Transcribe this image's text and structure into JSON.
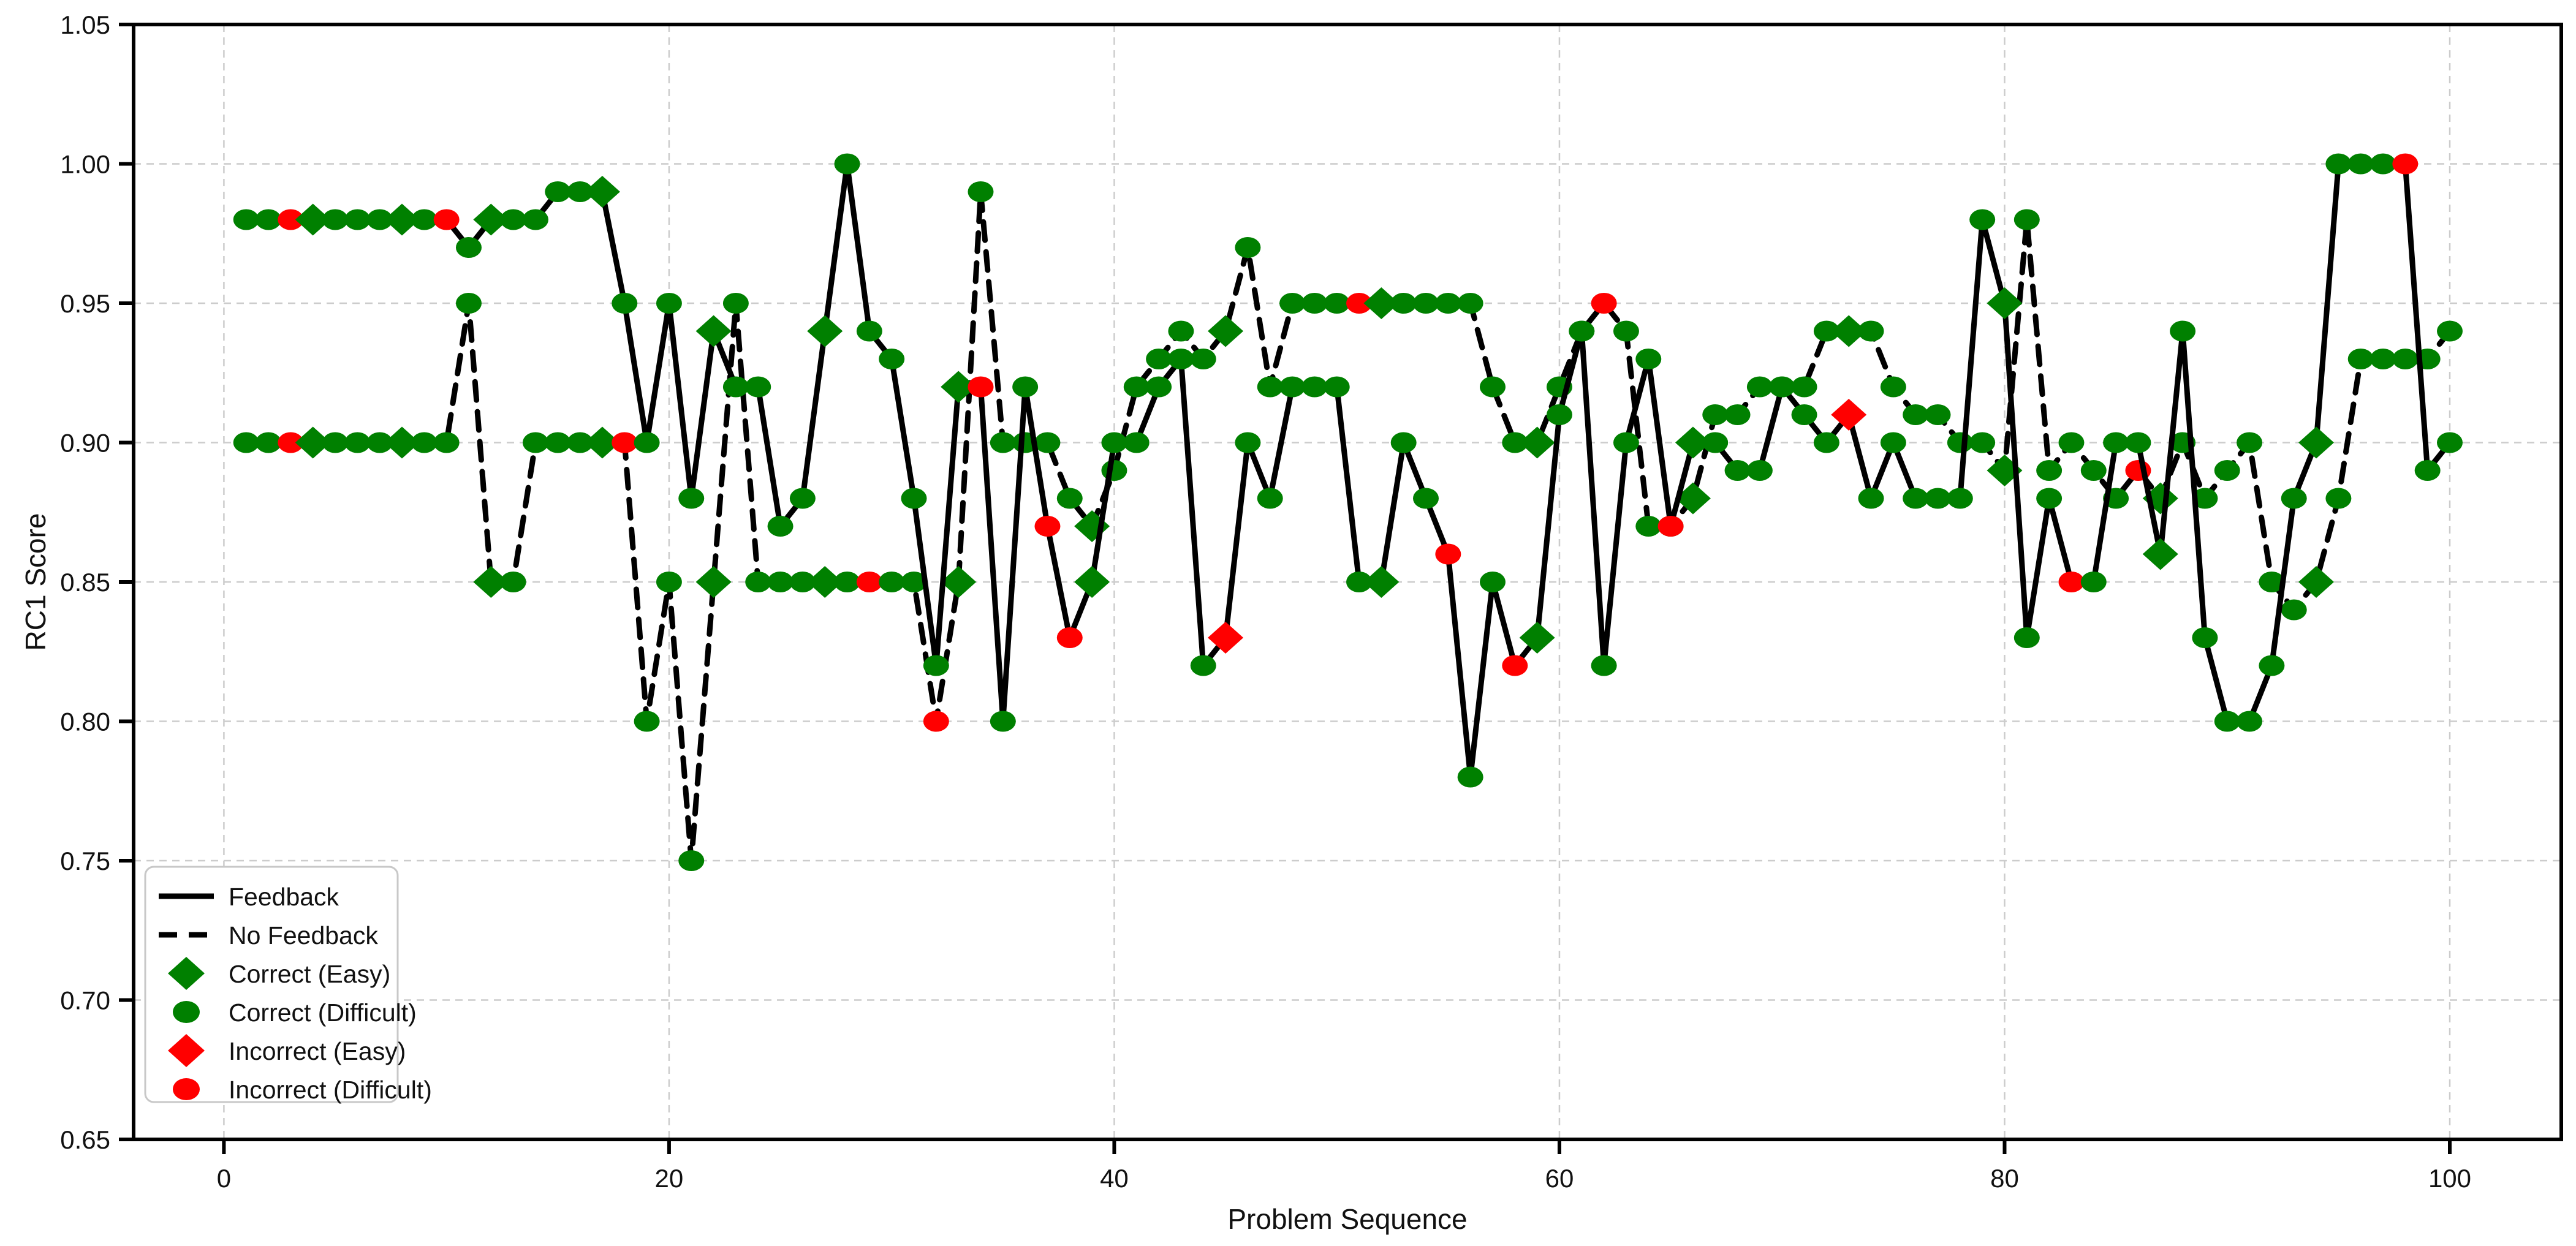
{
  "chart_data": {
    "type": "line",
    "title": "",
    "xlabel": "Problem Sequence",
    "ylabel": "RC1 Score",
    "xticks": [
      0,
      20,
      40,
      60,
      80,
      100
    ],
    "yticks": [
      0.65,
      0.7,
      0.75,
      0.8,
      0.85,
      0.9,
      0.95,
      1.0,
      1.05
    ],
    "ytick_labels": [
      "0.65",
      "0.70",
      "0.75",
      "0.80",
      "0.85",
      "0.90",
      "0.95",
      "1.00",
      "1.05"
    ],
    "xlim": [
      -4,
      105
    ],
    "ylim": [
      0.65,
      1.05
    ],
    "grid": true,
    "legend_position": "lower-left",
    "colors": {
      "correct": "#008000",
      "incorrect": "#ff0000",
      "line": "#000000",
      "grid": "#cccccc",
      "legend_border": "#c8c8c8",
      "text": "#111111"
    },
    "x": [
      1,
      2,
      3,
      4,
      5,
      6,
      7,
      8,
      9,
      10,
      11,
      12,
      13,
      14,
      15,
      16,
      17,
      18,
      19,
      20,
      21,
      22,
      23,
      24,
      25,
      26,
      27,
      28,
      29,
      30,
      31,
      32,
      33,
      34,
      35,
      36,
      37,
      38,
      39,
      40,
      41,
      42,
      43,
      44,
      45,
      46,
      47,
      48,
      49,
      50,
      51,
      52,
      53,
      54,
      55,
      56,
      57,
      58,
      59,
      60,
      61,
      62,
      63,
      64,
      65,
      66,
      67,
      68,
      69,
      70,
      71,
      72,
      73,
      74,
      75,
      76,
      77,
      78,
      79,
      80,
      81,
      82,
      83,
      84,
      85,
      86,
      87,
      88,
      89,
      90,
      91,
      92,
      93,
      94,
      95,
      96,
      97,
      98,
      99,
      100
    ],
    "easy_problem_indices": [
      4,
      8,
      12,
      17,
      22,
      27,
      33,
      39,
      45,
      52,
      59,
      66,
      73,
      80,
      87,
      94
    ],
    "series": [
      {
        "name": "No Feedback",
        "line_style": "dashed",
        "values": [
          0.9,
          0.9,
          0.9,
          0.9,
          0.9,
          0.9,
          0.9,
          0.9,
          0.9,
          0.9,
          0.95,
          0.85,
          0.85,
          0.9,
          0.9,
          0.9,
          0.9,
          0.9,
          0.8,
          0.85,
          0.75,
          0.85,
          0.95,
          0.85,
          0.85,
          0.85,
          0.85,
          0.85,
          0.85,
          0.85,
          0.85,
          0.8,
          0.85,
          0.99,
          0.9,
          0.9,
          0.9,
          0.88,
          0.87,
          0.89,
          0.92,
          0.93,
          0.94,
          0.93,
          0.94,
          0.97,
          0.92,
          0.95,
          0.95,
          0.95,
          0.95,
          0.95,
          0.95,
          0.95,
          0.95,
          0.95,
          0.92,
          0.9,
          0.9,
          0.92,
          0.94,
          0.95,
          0.94,
          0.87,
          0.87,
          0.88,
          0.91,
          0.91,
          0.92,
          0.92,
          0.92,
          0.94,
          0.94,
          0.94,
          0.92,
          0.91,
          0.91,
          0.9,
          0.9,
          0.89,
          0.98,
          0.89,
          0.9,
          0.89,
          0.88,
          0.89,
          0.88,
          0.9,
          0.88,
          0.89,
          0.9,
          0.85,
          0.84,
          0.85,
          0.88,
          0.93,
          0.93,
          0.93,
          0.93,
          0.94
        ],
        "incorrect_indices": [
          3,
          18,
          29,
          32,
          51,
          62,
          86
        ]
      },
      {
        "name": "Feedback",
        "line_style": "solid",
        "values": [
          0.98,
          0.98,
          0.98,
          0.98,
          0.98,
          0.98,
          0.98,
          0.98,
          0.98,
          0.98,
          0.97,
          0.98,
          0.98,
          0.98,
          0.99,
          0.99,
          0.99,
          0.95,
          0.9,
          0.95,
          0.88,
          0.94,
          0.92,
          0.92,
          0.87,
          0.88,
          0.94,
          1.0,
          0.94,
          0.93,
          0.88,
          0.82,
          0.92,
          0.92,
          0.8,
          0.92,
          0.87,
          0.83,
          0.85,
          0.9,
          0.9,
          0.92,
          0.93,
          0.82,
          0.83,
          0.9,
          0.88,
          0.92,
          0.92,
          0.92,
          0.85,
          0.85,
          0.9,
          0.88,
          0.86,
          0.78,
          0.85,
          0.82,
          0.83,
          0.91,
          0.94,
          0.82,
          0.9,
          0.93,
          0.87,
          0.9,
          0.9,
          0.89,
          0.89,
          0.92,
          0.91,
          0.9,
          0.91,
          0.88,
          0.9,
          0.88,
          0.88,
          0.88,
          0.98,
          0.95,
          0.83,
          0.88,
          0.85,
          0.85,
          0.9,
          0.9,
          0.86,
          0.94,
          0.83,
          0.8,
          0.8,
          0.82,
          0.88,
          0.9,
          1.0,
          1.0,
          1.0,
          1.0,
          0.89,
          0.9
        ],
        "incorrect_indices": [
          3,
          10,
          34,
          37,
          38,
          45,
          55,
          58,
          65,
          73,
          83,
          98
        ]
      }
    ],
    "legend": {
      "items": [
        {
          "label": "Feedback",
          "swatch": "solid-line"
        },
        {
          "label": "No Feedback",
          "swatch": "dashed-line"
        },
        {
          "label": "Correct (Easy)",
          "swatch": "diamond",
          "color": "#008000"
        },
        {
          "label": "Correct (Difficult)",
          "swatch": "circle",
          "color": "#008000"
        },
        {
          "label": "Incorrect (Easy)",
          "swatch": "diamond",
          "color": "#ff0000"
        },
        {
          "label": "Incorrect (Difficult)",
          "swatch": "circle",
          "color": "#ff0000"
        }
      ]
    }
  }
}
